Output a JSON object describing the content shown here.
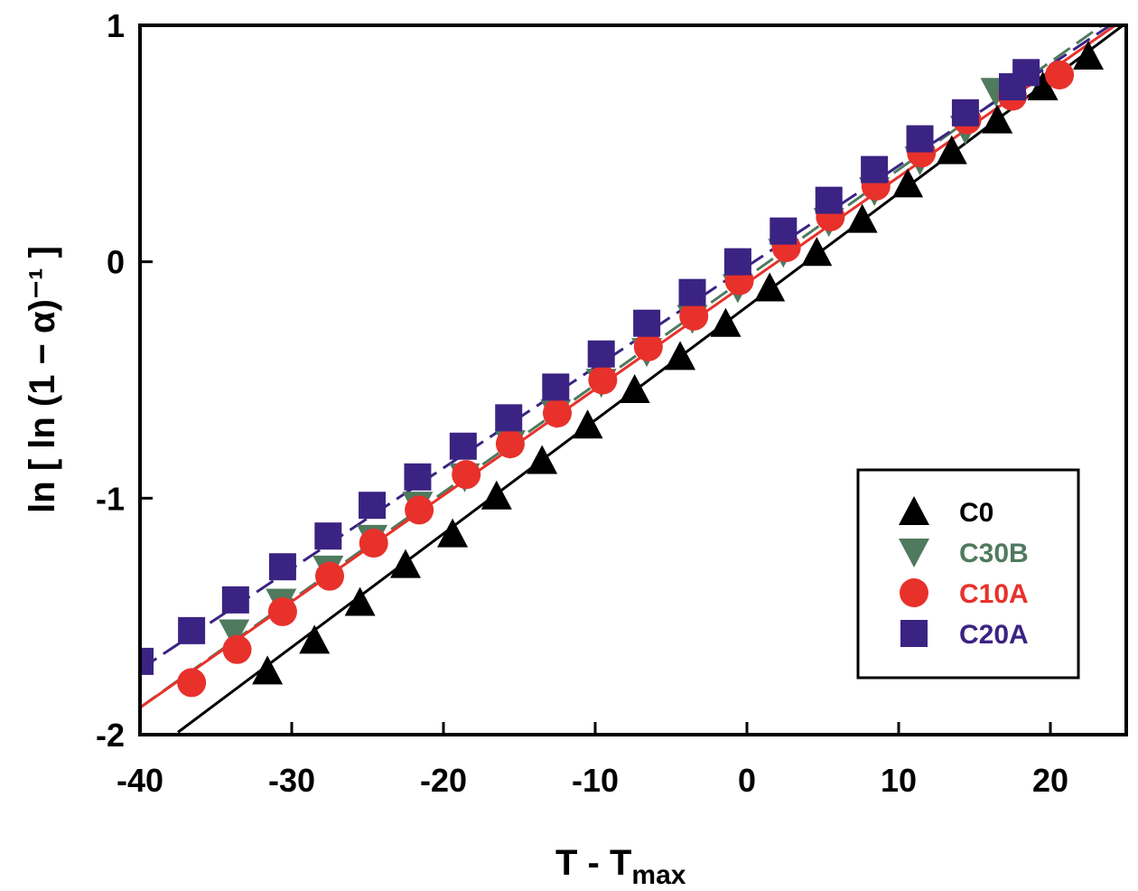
{
  "chart_data": {
    "type": "scatter",
    "title": "",
    "xlabel": "T - T",
    "xlabel_subscript": "max",
    "ylabel": "ln [ ln (1 − α)⁻¹ ]",
    "xlim": [
      -40,
      25
    ],
    "ylim": [
      -2,
      1
    ],
    "x_ticks": [
      -40,
      -30,
      -20,
      -10,
      0,
      10,
      20
    ],
    "x_tick_labels": [
      "-40",
      "-30",
      "-20",
      "-10",
      "0",
      "10",
      "20"
    ],
    "y_ticks": [
      -2,
      -1,
      0,
      1
    ],
    "y_tick_labels": [
      "-2",
      "-1",
      "0",
      "1"
    ],
    "grid": false,
    "legend_position": "lower-right",
    "series": [
      {
        "name": "C0",
        "color": "#000000",
        "marker": "triangle-up",
        "line_style": "solid",
        "fit": {
          "slope": 0.048,
          "intercept": -0.19,
          "x_range": [
            -37.5,
            25
          ]
        },
        "x": [
          -31.6,
          -28.5,
          -25.5,
          -22.5,
          -19.4,
          -16.5,
          -13.5,
          -10.5,
          -7.4,
          -4.4,
          -1.4,
          1.5,
          4.6,
          7.6,
          10.6,
          13.5,
          16.5,
          19.5,
          22.5
        ],
        "y": [
          -1.73,
          -1.6,
          -1.44,
          -1.28,
          -1.15,
          -0.99,
          -0.84,
          -0.69,
          -0.54,
          -0.4,
          -0.26,
          -0.11,
          0.04,
          0.18,
          0.33,
          0.47,
          0.6,
          0.74,
          0.87
        ]
      },
      {
        "name": "C30B",
        "color": "#4f7a5e",
        "marker": "triangle-down",
        "line_style": "dashed",
        "fit": {
          "slope": 0.0455,
          "intercept": -0.065,
          "x_range": [
            -40,
            25
          ]
        },
        "x": [
          -33.8,
          -30.7,
          -27.6,
          -24.7,
          -21.7,
          -18.6,
          -15.6,
          -12.6,
          -9.6,
          -6.6,
          -3.6,
          -0.6,
          2.4,
          5.4,
          8.4,
          11.4,
          14.4,
          16.4
        ],
        "y": [
          -1.57,
          -1.44,
          -1.3,
          -1.17,
          -1.03,
          -0.91,
          -0.77,
          -0.64,
          -0.51,
          -0.38,
          -0.24,
          -0.11,
          0.04,
          0.17,
          0.3,
          0.43,
          0.56,
          0.72
        ]
      },
      {
        "name": "C10A",
        "color": "#e8312b",
        "marker": "circle",
        "line_style": "solid",
        "fit": {
          "slope": 0.0449,
          "intercept": -0.09,
          "x_range": [
            -40,
            25
          ]
        },
        "x": [
          -36.6,
          -33.6,
          -30.6,
          -27.5,
          -24.6,
          -21.6,
          -18.5,
          -15.6,
          -12.5,
          -9.5,
          -6.5,
          -3.5,
          -0.5,
          2.6,
          5.5,
          8.5,
          11.5,
          14.5,
          17.5,
          20.6
        ],
        "y": [
          -1.78,
          -1.64,
          -1.48,
          -1.33,
          -1.19,
          -1.05,
          -0.9,
          -0.77,
          -0.64,
          -0.5,
          -0.36,
          -0.23,
          -0.08,
          0.06,
          0.19,
          0.32,
          0.46,
          0.6,
          0.7,
          0.79
        ]
      },
      {
        "name": "C20A",
        "color": "#3b2383",
        "marker": "square",
        "line_style": "dashed",
        "fit": {
          "slope": 0.0426,
          "intercept": -0.02,
          "x_range": [
            -40,
            24
          ]
        },
        "x": [
          -40.0,
          -36.6,
          -33.7,
          -30.6,
          -27.6,
          -24.7,
          -21.7,
          -18.7,
          -15.7,
          -12.6,
          -9.6,
          -6.6,
          -3.6,
          -0.6,
          2.4,
          5.4,
          8.4,
          11.4,
          14.4,
          17.5,
          18.4
        ],
        "y": [
          -1.69,
          -1.56,
          -1.43,
          -1.29,
          -1.16,
          -1.03,
          -0.91,
          -0.78,
          -0.66,
          -0.53,
          -0.39,
          -0.26,
          -0.13,
          0.0,
          0.13,
          0.26,
          0.39,
          0.52,
          0.63,
          0.74,
          0.8
        ]
      }
    ]
  }
}
